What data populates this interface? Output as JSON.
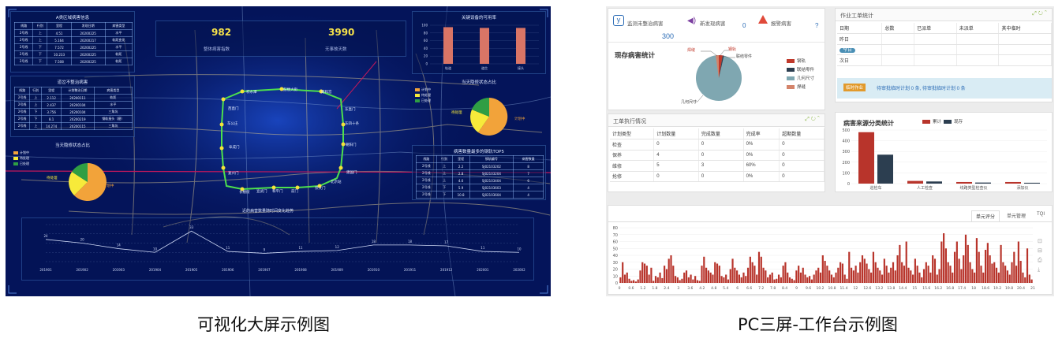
{
  "captions": {
    "left": "可视化大屏示例图",
    "right": "PC三屏-工作台示例图"
  },
  "dash": {
    "kpi": [
      {
        "value": "982",
        "label": "整体病害指数"
      },
      {
        "value": "3990",
        "label": "无事故天数"
      }
    ],
    "t1": {
      "title": "A类区域病害信息",
      "head": [
        "线路",
        "行别",
        "里程",
        "发现日期",
        "病害类型"
      ],
      "rows": [
        [
          "2号线",
          "上",
          "4.51",
          "20200225",
          "水平"
        ],
        [
          "2号线",
          "上",
          "5.164",
          "20200217",
          "轨距变化"
        ],
        [
          "2号线",
          "下",
          "7.572",
          "20200225",
          "水平"
        ],
        [
          "2号线",
          "下",
          "10.233",
          "20200225",
          "轨距"
        ],
        [
          "2号线",
          "下",
          "7.508",
          "20200225",
          "轨距"
        ]
      ]
    },
    "t2": {
      "title": "道岔不整治病害",
      "head": [
        "线路",
        "行别",
        "里程",
        "计划整治日期",
        "病害类型"
      ],
      "rows": [
        [
          "2号线",
          "上",
          "2.112",
          "20200111",
          "轨距"
        ],
        [
          "2号线",
          "上",
          "2.437",
          "20200104",
          "水平"
        ],
        [
          "2号线",
          "下",
          "3.756",
          "20200104",
          "三角坑"
        ],
        [
          "2号线",
          "下",
          "8.1",
          "20200219",
          "钢轨接头（磨）"
        ],
        [
          "2号线",
          "上",
          "14.274",
          "20200115",
          "三角坑"
        ]
      ]
    },
    "t3": {
      "title": "病害数量最多的钢轨TOP5",
      "head": [
        "线路",
        "行别",
        "里程",
        "钢轨编号",
        "病害数量"
      ],
      "rows": [
        [
          "2号线",
          "上",
          "2.2",
          "SJ02103202",
          "8"
        ],
        [
          "2号线",
          "上",
          "2.8",
          "SJ02103204",
          "7"
        ],
        [
          "2号线",
          "上",
          "4.6",
          "SJ02103404",
          "6"
        ],
        [
          "2号线",
          "下",
          "5.9",
          "SJ02103603",
          "4"
        ],
        [
          "2号线",
          "下",
          "10.8",
          "SJ02103604",
          "4"
        ]
      ]
    },
    "bar": {
      "title": "关键设备的可用率",
      "categories": [
        "轨道",
        "道岔",
        "接头"
      ],
      "values": [
        95,
        93,
        93
      ],
      "yticks": [
        "100",
        "80",
        "60",
        "40",
        "20",
        "0"
      ]
    },
    "pie1": {
      "title": "当天隐修状态占比",
      "legend": [
        "计划中",
        "待处理",
        "已处理"
      ],
      "labels": [
        "已处理",
        "待处理",
        "计划中"
      ]
    },
    "pie2": {
      "title": "当天隐修状态占比",
      "legend": [
        "计划中",
        "待处理",
        "已处理"
      ],
      "labels": [
        "待处理",
        "计划中"
      ]
    },
    "stations": [
      "积水潭",
      "鼓楼大街",
      "雍和宫",
      "西直门",
      "东直门",
      "车公庄",
      "东四十条",
      "阜成门",
      "朝阳门",
      "复兴门",
      "建国门",
      "长椿街",
      "宣武门",
      "和平门",
      "前门",
      "崇文门",
      "北京站"
    ],
    "line_title": "近的病害数量随时间变化趋势",
    "line": {
      "x": [
        "201901",
        "201902",
        "201903",
        "201904",
        "201905",
        "201906",
        "201907",
        "201908",
        "201909",
        "201910",
        "201911",
        "201912",
        "202001",
        "202002"
      ],
      "values": [
        24,
        20,
        14,
        10,
        33,
        11,
        9,
        11,
        12,
        18,
        18,
        17,
        11,
        10
      ]
    }
  },
  "pc": {
    "alerts": [
      {
        "label": "监测未整治病害",
        "value": "300"
      },
      {
        "label": "新发现病害",
        "value": "0"
      },
      {
        "label": "报警病害",
        "value": "?"
      }
    ],
    "donut": {
      "title": "现存病害统计",
      "legend": [
        "钢轨",
        "联结零件",
        "几何尺寸",
        "焊缝"
      ],
      "colors": [
        "#c0392b",
        "#2c3e50",
        "#7fa7b1",
        "#d4846b"
      ],
      "callouts": [
        "焊缝",
        "钢轨",
        "联结零件",
        "几何尺寸"
      ]
    },
    "workorder": {
      "title": "作业工单统计",
      "head": [
        "日期",
        "总数",
        "已派单",
        "未派单",
        "其中临时"
      ],
      "rows": [
        [
          "昨日",
          "",
          "",
          "",
          ""
        ],
        [
          "今日",
          "",
          "",
          "",
          ""
        ],
        [
          "次日",
          "",
          "",
          "",
          ""
        ]
      ],
      "notice_btn": "临时作业",
      "notice_text": "待审批临时计划 0 条, 待审批临时计划 0 条"
    },
    "exec": {
      "title": "工单执行情况",
      "head": [
        "计划类型",
        "计划数量",
        "完成数量",
        "完成率",
        "超期数量"
      ],
      "rows": [
        [
          "检查",
          "0",
          "0",
          "0%",
          "0"
        ],
        [
          "保养",
          "4",
          "0",
          "0%",
          "0"
        ],
        [
          "维修",
          "5",
          "3",
          "60%",
          "0"
        ],
        [
          "抢修",
          "0",
          "0",
          "0%",
          "0"
        ]
      ]
    },
    "source": {
      "title": "病害来源分类统计",
      "legend": [
        "累计",
        "现存"
      ],
      "categories": [
        "巡检车",
        "人工检查",
        "线路类型检查仪",
        "添加仪"
      ],
      "cumulative": [
        480,
        25,
        15,
        15
      ],
      "current": [
        270,
        20,
        10,
        8
      ],
      "yticks": [
        "500",
        "400",
        "300",
        "200",
        "100",
        "0"
      ]
    },
    "tabs": [
      "单元评分",
      "单元管理",
      "TQI"
    ],
    "hist": {
      "yticks": [
        "80",
        "70",
        "60",
        "50",
        "40",
        "30",
        "20",
        "10",
        "0"
      ],
      "xticks": [
        "0",
        "0.6",
        "1.2",
        "1.8",
        "2.4",
        "3",
        "3.6",
        "4.2",
        "4.8",
        "5.4",
        "6",
        "6.6",
        "7.2",
        "7.8",
        "8.4",
        "9",
        "9.6",
        "10.2",
        "10.8",
        "11.4",
        "12",
        "12.6",
        "13.2",
        "13.8",
        "14.4",
        "15",
        "15.6",
        "16.2",
        "16.8",
        "17.4",
        "18",
        "18.6",
        "19.2",
        "19.8",
        "20.4",
        "21"
      ],
      "values": [
        8,
        30,
        12,
        15,
        6,
        3,
        4,
        2,
        5,
        18,
        30,
        28,
        25,
        12,
        22,
        3,
        10,
        8,
        15,
        7,
        25,
        20,
        35,
        40,
        25,
        10,
        8,
        4,
        6,
        15,
        18,
        8,
        12,
        5,
        10,
        4,
        3,
        25,
        38,
        22,
        18,
        15,
        12,
        30,
        28,
        25,
        10,
        8,
        12,
        5,
        20,
        35,
        22,
        18,
        12,
        8,
        15,
        10,
        22,
        38,
        30,
        25,
        12,
        45,
        38,
        22,
        18,
        8,
        12,
        15,
        5,
        6,
        12,
        8,
        25,
        30,
        15,
        8,
        6,
        4,
        18,
        25,
        15,
        22,
        12,
        8,
        10,
        5,
        12,
        18,
        22,
        15,
        40,
        32,
        25,
        18,
        12,
        8,
        15,
        22,
        30,
        28,
        12,
        6,
        45,
        22,
        18,
        25,
        15,
        30,
        40,
        35,
        28,
        20,
        15,
        45,
        30,
        22,
        18,
        12,
        35,
        25,
        15,
        22,
        30,
        18,
        40,
        55,
        30,
        25,
        60,
        22,
        18,
        12,
        35,
        25,
        15,
        8,
        20,
        30,
        25,
        15,
        40,
        35,
        12,
        20,
        60,
        72,
        50,
        30,
        25,
        15,
        45,
        60,
        35,
        20,
        40,
        70,
        55,
        30,
        20,
        15,
        65,
        45,
        25,
        15,
        48,
        58,
        40,
        28,
        30,
        22,
        15,
        55,
        30,
        25,
        18,
        12,
        30,
        45,
        25,
        60,
        32,
        15,
        8,
        50,
        12,
        5
      ]
    }
  }
}
